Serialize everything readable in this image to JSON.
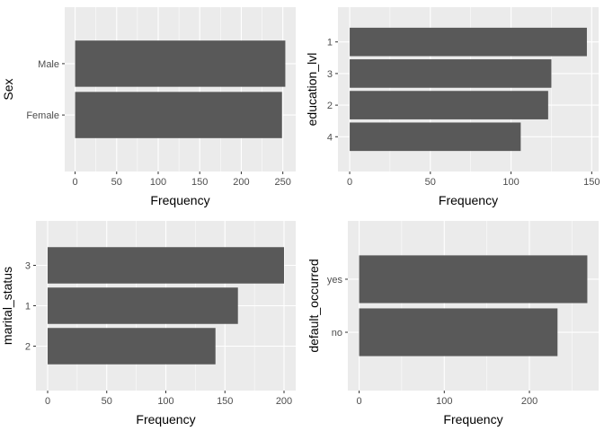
{
  "chart_data": [
    {
      "type": "bar",
      "orientation": "horizontal",
      "xlabel": "Frequency",
      "ylabel": "Sex",
      "categories": [
        "Male",
        "Female"
      ],
      "values": [
        253,
        249
      ],
      "xlim": [
        0,
        253
      ],
      "xticks": [
        0,
        50,
        100,
        150,
        200,
        250
      ],
      "grid": true
    },
    {
      "type": "bar",
      "orientation": "horizontal",
      "xlabel": "Frequency",
      "ylabel": "education_lvl",
      "categories": [
        "1",
        "3",
        "2",
        "4"
      ],
      "values": [
        147,
        125,
        123,
        106
      ],
      "xlim": [
        0,
        147
      ],
      "xticks": [
        0,
        50,
        100,
        150
      ],
      "grid": true
    },
    {
      "type": "bar",
      "orientation": "horizontal",
      "xlabel": "Frequency",
      "ylabel": "marital_status",
      "categories": [
        "3",
        "1",
        "2"
      ],
      "values": [
        200,
        161,
        142
      ],
      "xlim": [
        0,
        200
      ],
      "xticks": [
        0,
        50,
        100,
        150,
        200
      ],
      "grid": true
    },
    {
      "type": "bar",
      "orientation": "horizontal",
      "xlabel": "Frequency",
      "ylabel": "default_occurred",
      "categories": [
        "yes",
        "no"
      ],
      "values": [
        268,
        233
      ],
      "xlim": [
        0,
        268
      ],
      "xticks": [
        0,
        100,
        200
      ],
      "grid": true
    }
  ],
  "colors": {
    "panel_background": "#ebebeb",
    "grid_major": "#ffffff",
    "bar_fill": "#595959",
    "tick_text": "#4d4d4d",
    "axis_title": "#000000"
  }
}
